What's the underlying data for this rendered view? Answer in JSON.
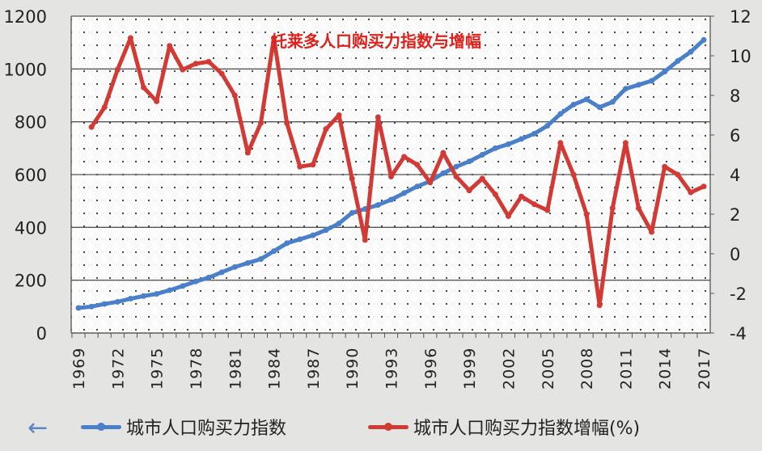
{
  "chart_data": {
    "type": "line",
    "title": "托莱多人口购买力指数与增幅",
    "x": [
      1969,
      1970,
      1971,
      1972,
      1973,
      1974,
      1975,
      1976,
      1977,
      1978,
      1979,
      1980,
      1981,
      1982,
      1983,
      1984,
      1985,
      1986,
      1987,
      1988,
      1989,
      1990,
      1991,
      1992,
      1993,
      1994,
      1995,
      1996,
      1997,
      1998,
      1999,
      2000,
      2001,
      2002,
      2003,
      2004,
      2005,
      2006,
      2007,
      2008,
      2009,
      2010,
      2011,
      2012,
      2013,
      2014,
      2015,
      2016,
      2017
    ],
    "x_tick_labels": [
      "1969",
      "1972",
      "1975",
      "1978",
      "1981",
      "1984",
      "1987",
      "1990",
      "1993",
      "1996",
      "1999",
      "2002",
      "2005",
      "2008",
      "2011",
      "2014",
      "2017"
    ],
    "y_left": {
      "range": [
        0,
        1200
      ],
      "ticks": [
        "0",
        "200",
        "400",
        "600",
        "800",
        "1000",
        "1200"
      ]
    },
    "y_right": {
      "range": [
        -4,
        12
      ],
      "ticks": [
        "-4",
        "-2",
        "0",
        "2",
        "4",
        "6",
        "8",
        "10",
        "12"
      ]
    },
    "grid": true,
    "legend_position": "bottom",
    "series": [
      {
        "name": "城市人口购买力指数",
        "axis": "left",
        "color": "#4a7fc9",
        "values": [
          95,
          100,
          110,
          118,
          130,
          140,
          148,
          162,
          178,
          195,
          210,
          230,
          250,
          265,
          280,
          310,
          340,
          355,
          370,
          390,
          415,
          455,
          470,
          485,
          505,
          530,
          555,
          575,
          605,
          630,
          650,
          675,
          700,
          715,
          735,
          755,
          785,
          830,
          865,
          885,
          855,
          875,
          925,
          940,
          955,
          990,
          1030,
          1065,
          1110
        ]
      },
      {
        "name": "城市人口购买力指数增幅(%)",
        "axis": "right",
        "color": "#d23a35",
        "values": [
          null,
          6.4,
          7.4,
          9.3,
          10.9,
          8.4,
          7.7,
          10.5,
          9.3,
          9.6,
          9.7,
          9.1,
          8.0,
          5.1,
          6.6,
          10.9,
          6.6,
          4.4,
          4.5,
          6.3,
          7.0,
          3.8,
          0.7,
          6.9,
          3.9,
          4.9,
          4.5,
          3.6,
          5.1,
          3.9,
          3.2,
          3.8,
          3.0,
          1.9,
          2.9,
          2.5,
          2.2,
          5.6,
          4.0,
          2.0,
          -2.6,
          2.3,
          5.6,
          2.3,
          1.1,
          4.4,
          4.0,
          3.1,
          3.4
        ]
      }
    ]
  },
  "legend": {
    "back_icon": "arrow-left-icon",
    "items": [
      "城市人口购买力指数",
      "城市人口购买力指数增幅(%)"
    ]
  }
}
